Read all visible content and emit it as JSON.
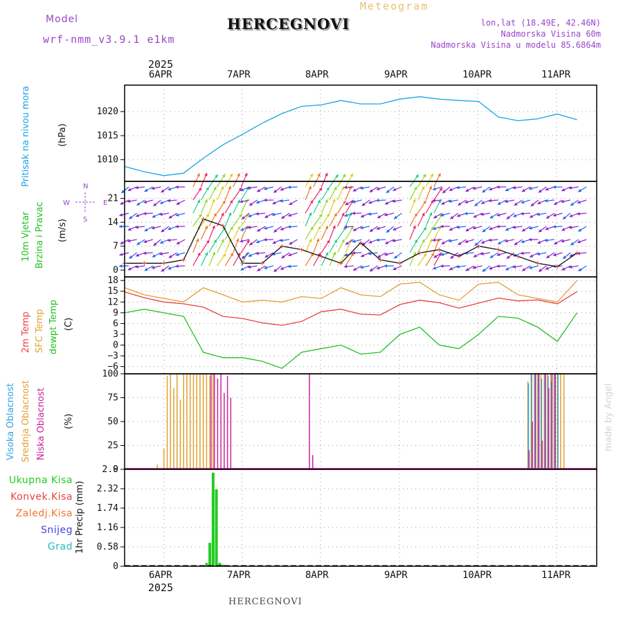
{
  "header": {
    "model_label": "Model",
    "model_name": "wrf-nmm_v3.9.1 e1km",
    "title": "HERCEGNOVI",
    "meteogram_label": "Meteogram",
    "coords": "lon,lat (18.49E, 42.46N)",
    "elevation": "Nadmorska Visina 60m",
    "model_elevation": "Nadmorska Visina u modelu 85.6864m",
    "year_top": "2025"
  },
  "footer": {
    "year_bottom": "2025",
    "station": "HERCEGNOVI",
    "watermark": "made by Angel"
  },
  "colors": {
    "pressure": "#1aa3e8",
    "temp2m": "#e84040",
    "sfc": "#e0a030",
    "dewpt": "#22c022",
    "visoka": "#33a3dd",
    "srednja": "#e0a030",
    "niska": "#cc2299",
    "precip": "#22cc22",
    "konvek": "#e84040",
    "zaledj": "#ee7733",
    "snijeg": "#4444dd",
    "grad": "#22bbbb",
    "wind_purple": "#8822cc",
    "compass": "#9944cc"
  },
  "time_axis": {
    "days": [
      "6APR",
      "7APR",
      "8APR",
      "9APR",
      "10APR",
      "11APR"
    ]
  },
  "compass": {
    "n": "N",
    "s": "S",
    "e": "E",
    "w": "W"
  },
  "chart_data": [
    {
      "type": "line",
      "panel": "pressure",
      "ylabel": "(hPa)",
      "side_label": "Pritisak na nivou mora",
      "ylim": [
        1005.5,
        1025.5
      ],
      "yticks": [
        1010,
        1015,
        1020
      ],
      "grid": true,
      "x_hours": [
        0,
        6,
        12,
        18,
        24,
        30,
        36,
        42,
        48,
        54,
        60,
        66,
        72,
        78,
        84,
        90,
        96,
        102,
        108,
        114,
        120,
        126,
        132,
        138
      ],
      "x": [
        "6APR 00",
        "6APR 06",
        "6APR 12",
        "6APR 18",
        "7APR 00",
        "7APR 06",
        "7APR 12",
        "7APR 18",
        "8APR 00",
        "8APR 06",
        "8APR 12",
        "8APR 18",
        "9APR 00",
        "9APR 06",
        "9APR 12",
        "9APR 18",
        "10APR 00",
        "10APR 06",
        "10APR 12",
        "10APR 18",
        "11APR 00",
        "11APR 06",
        "11APR 12",
        "11APR 18"
      ],
      "series": [
        {
          "name": "Pritisak na nivou mora",
          "values": [
            1008.6,
            1007.5,
            1006.7,
            1007.2,
            1010.3,
            1013.1,
            1015.3,
            1017.6,
            1019.6,
            1021.1,
            1021.4,
            1022.3,
            1021.6,
            1021.6,
            1022.6,
            1023.1,
            1022.6,
            1022.3,
            1022.1,
            1018.9,
            1018.1,
            1018.5,
            1019.5,
            1018.3
          ]
        }
      ]
    },
    {
      "type": "line",
      "panel": "wind",
      "ylabel": "(m/s)",
      "side_labels": [
        "10m Vjetar",
        "Brzina i Pravac"
      ],
      "ylim": [
        -2,
        26
      ],
      "yticks": [
        0,
        7,
        14,
        21
      ],
      "grid": true,
      "x_hours": [
        0,
        6,
        12,
        18,
        24,
        30,
        36,
        42,
        48,
        54,
        60,
        66,
        72,
        78,
        84,
        90,
        96,
        102,
        108,
        114,
        120,
        126,
        132,
        138
      ],
      "series": [
        {
          "name": "Brzina",
          "values": [
            2,
            2,
            2,
            3,
            15,
            13,
            2,
            2,
            7,
            6,
            4,
            2,
            8,
            3,
            2,
            5,
            6,
            4,
            7,
            6,
            4,
            2,
            1,
            5
          ]
        }
      ]
    },
    {
      "type": "line",
      "panel": "temperature",
      "ylabel": "(C)",
      "side_labels": [
        "2m Temp",
        "SFC Temp",
        "dewpt Temp"
      ],
      "ylim": [
        -8,
        19
      ],
      "yticks": [
        -6,
        -3,
        0,
        3,
        6,
        9,
        12,
        15,
        18
      ],
      "grid": true,
      "x_hours": [
        0,
        6,
        12,
        18,
        24,
        30,
        36,
        42,
        48,
        54,
        60,
        66,
        72,
        78,
        84,
        90,
        96,
        102,
        108,
        114,
        120,
        126,
        132,
        138
      ],
      "series": [
        {
          "name": "2m Temp",
          "values": [
            14.8,
            13.2,
            12.0,
            11.5,
            10.6,
            8.0,
            7.4,
            6.2,
            5.5,
            6.6,
            9.3,
            10.0,
            8.6,
            8.4,
            11.3,
            12.5,
            11.8,
            10.3,
            11.7,
            13.1,
            12.3,
            12.6,
            11.5,
            14.9
          ]
        },
        {
          "name": "SFC Temp",
          "values": [
            16.0,
            14.0,
            13.0,
            12.0,
            16.0,
            14.0,
            12.0,
            12.5,
            12.0,
            13.5,
            13.0,
            16.0,
            14.0,
            13.5,
            17.0,
            17.5,
            14.0,
            12.5,
            17.0,
            17.5,
            14.0,
            13.0,
            12.0,
            18.0
          ]
        },
        {
          "name": "dewpt Temp",
          "values": [
            9.0,
            10.0,
            9.0,
            8.0,
            -2.0,
            -3.5,
            -3.5,
            -4.5,
            -6.5,
            -2.0,
            -1.0,
            0.0,
            -2.5,
            -2.0,
            3.0,
            5.0,
            0.0,
            -1.0,
            3.0,
            8.0,
            7.5,
            5.0,
            1.0,
            9.0
          ]
        }
      ]
    },
    {
      "type": "bar",
      "panel": "clouds",
      "ylabel": "(%)",
      "side_labels": [
        "Visoka Oblacnost",
        "Srednja Oblacnost",
        "Niska Oblacnost"
      ],
      "ylim": [
        0,
        100
      ],
      "yticks": [
        0,
        25,
        50,
        75,
        100
      ],
      "grid": true,
      "series": [
        {
          "name": "Srednja Oblacnost",
          "x_hours": [
            10,
            12,
            13,
            14,
            15,
            16,
            17,
            18,
            19,
            20,
            21,
            22,
            23,
            24,
            25,
            26,
            27,
            123,
            124,
            125,
            126,
            127,
            128,
            129,
            130,
            131,
            132,
            133,
            134
          ],
          "values": [
            5,
            22,
            98,
            100,
            85,
            100,
            73,
            100,
            100,
            100,
            100,
            100,
            100,
            100,
            100,
            98,
            100,
            92,
            100,
            100,
            100,
            100,
            100,
            100,
            100,
            100,
            100,
            100,
            100
          ]
        },
        {
          "name": "Visoka Oblacnost",
          "x_hours": [
            123,
            124,
            125,
            126,
            127,
            128,
            129,
            130,
            131,
            132
          ],
          "values": [
            90,
            100,
            100,
            100,
            95,
            100,
            98,
            92,
            100,
            100
          ]
        },
        {
          "name": "Niska Oblacnost",
          "x_hours": [
            26,
            27,
            28,
            29,
            30,
            31,
            32,
            56,
            57,
            123,
            124,
            125,
            126,
            127,
            128,
            129,
            130,
            131
          ],
          "values": [
            100,
            100,
            95,
            100,
            80,
            98,
            75,
            100,
            15,
            20,
            50,
            100,
            100,
            30,
            100,
            85,
            100,
            100
          ]
        }
      ]
    },
    {
      "type": "bar",
      "panel": "precip",
      "ylabel": "1hr Precip (mm)",
      "side_labels": [
        "Ukupna Kisa",
        "Konvek.Kisa",
        "Zaledj.Kisa",
        "Snijeg",
        "Grad"
      ],
      "ylim": [
        0,
        2.9
      ],
      "yticks": [
        0,
        0.58,
        1.16,
        1.74,
        2.32,
        2.9
      ],
      "ytick_labels": [
        "0",
        "0.58",
        "1.16",
        "1.74",
        "2.32",
        "2.9"
      ],
      "grid": true,
      "series": [
        {
          "name": "Ukupna Kisa",
          "x_hours": [
            25,
            26,
            27,
            28,
            29,
            30,
            31
          ],
          "values": [
            0.1,
            0.7,
            2.8,
            2.3,
            0.1,
            0.05,
            0.02
          ]
        }
      ]
    }
  ]
}
